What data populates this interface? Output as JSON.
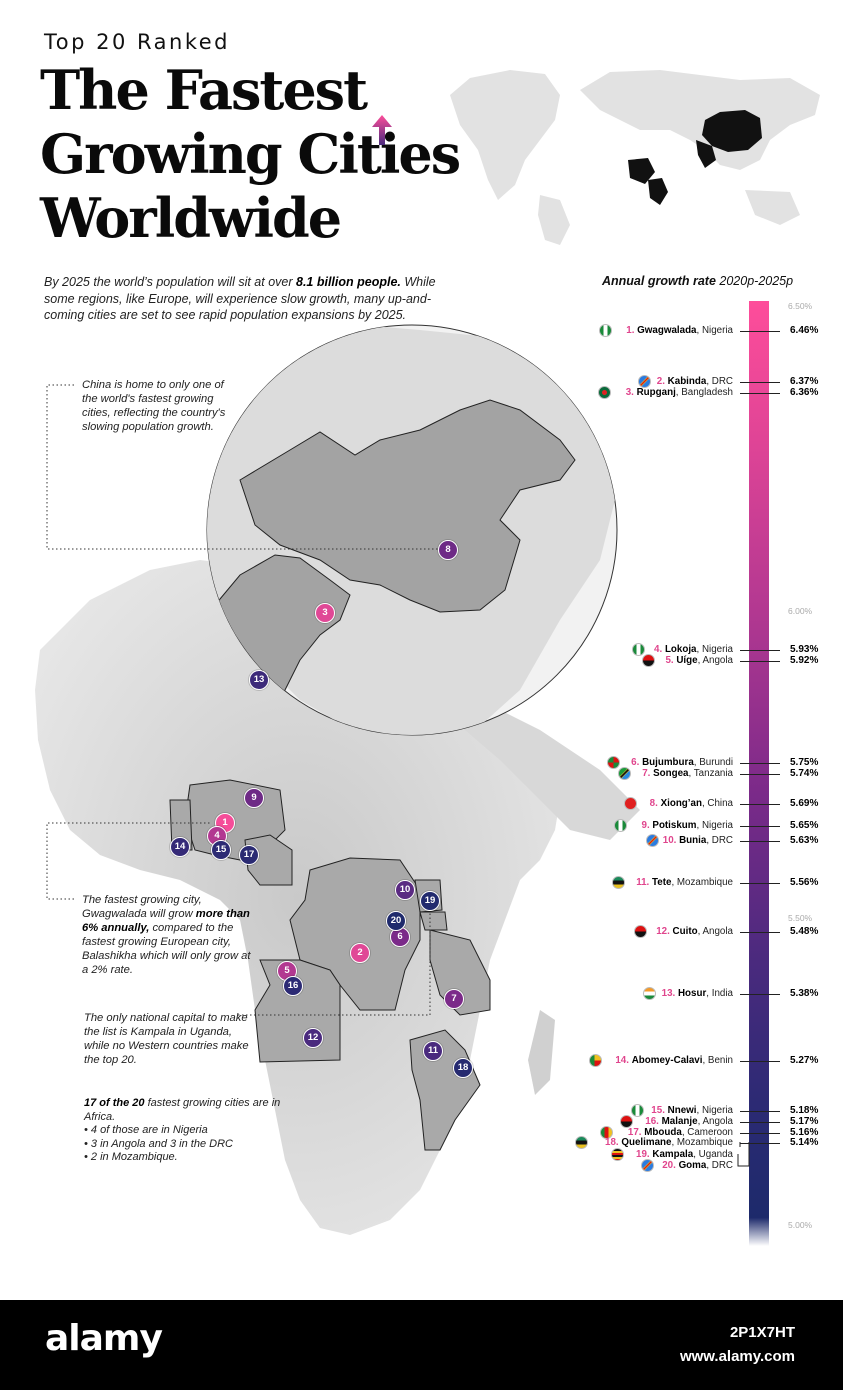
{
  "header": {
    "kicker": "Top 20 Ranked",
    "title_line1": "The Fastest",
    "title_line2": "Growing Cities",
    "title_line3": "Worldwide"
  },
  "intro": {
    "part1": "By 2025 the world’s population will sit at over ",
    "bold": "8.1 billion people.",
    "part2": " While some regions, like Europe, will experience slow growth, many up-and-coming cities are set to see rapid population expansions by 2025."
  },
  "annotations": {
    "china": "China is home to only one of the world's fastest growing cities, reflecting the country's slowing population growth.",
    "gwagwalada_part1": "The fastest growing city, Gwagwalada will grow ",
    "gwagwalada_bold": "more than 6% annually,",
    "gwagwalada_part2": " compared to the fastest growing European city, Balashikha which will only grow at a 2% rate.",
    "kampala": "The only national capital to make the list is Kampala in Uganda, while no Western countries make the top 20.",
    "stats_head": "17 of the 20",
    "stats_head_rest": " fastest growing cities are in Africa.",
    "stats_lines": [
      "• 4 of those are in Nigeria",
      "• 3 in Angola and 3 in the DRC",
      "• 2 in Mozambique."
    ]
  },
  "scale": {
    "title": "Annual growth rate",
    "period": "2020p-2025p",
    "ticks": [
      "6.50%",
      "6.00%",
      "5.50%",
      "5.00%"
    ]
  },
  "cities": [
    {
      "rank": "1.",
      "name": "Gwagwalada",
      "country": ", Nigeria",
      "rate": "6.46%"
    },
    {
      "rank": "2.",
      "name": "Kabinda",
      "country": ", DRC",
      "rate": "6.37%"
    },
    {
      "rank": "3.",
      "name": "Rupganj",
      "country": ", Bangladesh",
      "rate": "6.36%"
    },
    {
      "rank": "4.",
      "name": "Lokoja",
      "country": ", Nigeria",
      "rate": "5.93%"
    },
    {
      "rank": "5.",
      "name": "Uíge",
      "country": ", Angola",
      "rate": "5.92%"
    },
    {
      "rank": "6.",
      "name": "Bujumbura",
      "country": ", Burundi",
      "rate": "5.75%"
    },
    {
      "rank": "7.",
      "name": "Songea",
      "country": ", Tanzania",
      "rate": "5.74%"
    },
    {
      "rank": "8.",
      "name": "Xiong’an",
      "country": ", China",
      "rate": "5.69%"
    },
    {
      "rank": "9.",
      "name": "Potiskum",
      "country": ", Nigeria",
      "rate": "5.65%"
    },
    {
      "rank": "10.",
      "name": "Bunia",
      "country": ", DRC",
      "rate": "5.63%"
    },
    {
      "rank": "11.",
      "name": "Tete",
      "country": ", Mozambique",
      "rate": "5.56%"
    },
    {
      "rank": "12.",
      "name": "Cuito",
      "country": ", Angola",
      "rate": "5.48%"
    },
    {
      "rank": "13.",
      "name": "Hosur",
      "country": ", India",
      "rate": "5.38%"
    },
    {
      "rank": "14.",
      "name": "Abomey-Calavi",
      "country": ", Benin",
      "rate": "5.27%"
    },
    {
      "rank": "15.",
      "name": "Nnewi",
      "country": ", Nigeria",
      "rate": "5.18%"
    },
    {
      "rank": "16.",
      "name": "Malanje",
      "country": ", Angola",
      "rate": "5.17%"
    },
    {
      "rank": "17.",
      "name": "Mbouda",
      "country": ", Cameroon",
      "rate": "5.16%"
    },
    {
      "rank": "18.",
      "name": "Quelimane",
      "country": ", Mozambique",
      "rate": "5.14%"
    },
    {
      "rank": "19.",
      "name": "Kampala",
      "country": ", Uganda",
      "rate": ""
    },
    {
      "rank": "20.",
      "name": "Goma",
      "country": ", DRC",
      "rate": ""
    }
  ],
  "markers": [
    "1",
    "2",
    "3",
    "4",
    "5",
    "6",
    "7",
    "8",
    "9",
    "10",
    "11",
    "12",
    "13",
    "14",
    "15",
    "16",
    "17",
    "18",
    "19",
    "20"
  ],
  "footer": {
    "logo": "alamy",
    "image_id": "2P1X7HT",
    "url": "www.alamy.com"
  }
}
